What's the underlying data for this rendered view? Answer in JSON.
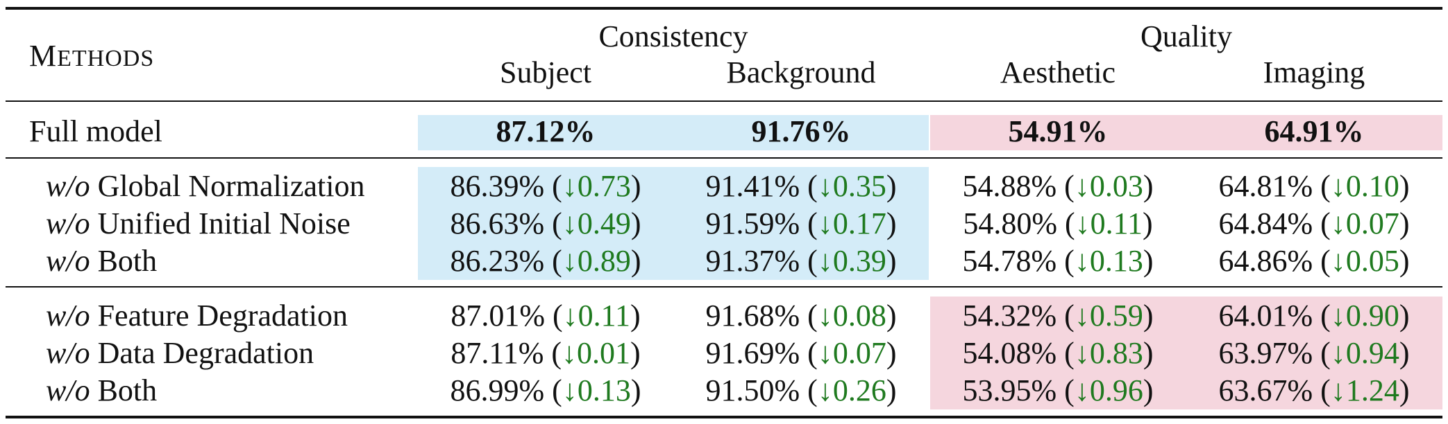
{
  "header": {
    "methods_first": "M",
    "methods_rest": "ETHODS",
    "group_consistency": "Consistency",
    "group_quality": "Quality",
    "col_subject": "Subject",
    "col_background": "Background",
    "col_aesthetic": "Aesthetic",
    "col_imaging": "Imaging"
  },
  "full_model": {
    "label": "Full model",
    "subject": "87.12%",
    "background": "91.76%",
    "aesthetic": "54.91%",
    "imaging": "64.91%"
  },
  "group1": [
    {
      "prefix": "w/o",
      "label": " Global Normalization",
      "subject": "86.39% (",
      "subject_delta": "↓0.73",
      "subject_close": ")",
      "background": "91.41% (",
      "background_delta": "↓0.35",
      "background_close": ")",
      "aesthetic": "54.88% (",
      "aesthetic_delta": "↓0.03",
      "aesthetic_close": ")",
      "imaging": "64.81% (",
      "imaging_delta": "↓0.10",
      "imaging_close": ")"
    },
    {
      "prefix": "w/o",
      "label": " Unified Initial Noise",
      "subject": "86.63% (",
      "subject_delta": "↓0.49",
      "subject_close": ")",
      "background": "91.59% (",
      "background_delta": "↓0.17",
      "background_close": ")",
      "aesthetic": "54.80% (",
      "aesthetic_delta": "↓0.11",
      "aesthetic_close": ")",
      "imaging": "64.84% (",
      "imaging_delta": "↓0.07",
      "imaging_close": ")"
    },
    {
      "prefix": "w/o",
      "label": " Both",
      "subject": "86.23% (",
      "subject_delta": "↓0.89",
      "subject_close": ")",
      "background": "91.37% (",
      "background_delta": "↓0.39",
      "background_close": ")",
      "aesthetic": "54.78% (",
      "aesthetic_delta": "↓0.13",
      "aesthetic_close": ")",
      "imaging": "64.86% (",
      "imaging_delta": "↓0.05",
      "imaging_close": ")"
    }
  ],
  "group2": [
    {
      "prefix": "w/o",
      "label": " Feature Degradation",
      "subject": "87.01% (",
      "subject_delta": "↓0.11",
      "subject_close": ")",
      "background": "91.68% (",
      "background_delta": "↓0.08",
      "background_close": ")",
      "aesthetic": "54.32% (",
      "aesthetic_delta": "↓0.59",
      "aesthetic_close": ")",
      "imaging": "64.01% (",
      "imaging_delta": "↓0.90",
      "imaging_close": ")"
    },
    {
      "prefix": "w/o",
      "label": " Data Degradation",
      "subject": "87.11% (",
      "subject_delta": "↓0.01",
      "subject_close": ")",
      "background": "91.69% (",
      "background_delta": "↓0.07",
      "background_close": ")",
      "aesthetic": "54.08% (",
      "aesthetic_delta": "↓0.83",
      "aesthetic_close": ")",
      "imaging": "63.97% (",
      "imaging_delta": "↓0.94",
      "imaging_close": ")"
    },
    {
      "prefix": "w/o",
      "label": " Both",
      "subject": "86.99% (",
      "subject_delta": "↓0.13",
      "subject_close": ")",
      "background": "91.50% (",
      "background_delta": "↓0.26",
      "background_close": ")",
      "aesthetic": "53.95% (",
      "aesthetic_delta": "↓0.96",
      "aesthetic_close": ")",
      "imaging": "63.67% (",
      "imaging_delta": "↓1.24",
      "imaging_close": ")"
    }
  ],
  "colors": {
    "consistency_highlight": "#d4ecf8",
    "quality_highlight": "#f5d6de",
    "delta_text": "#1f7a1f"
  }
}
